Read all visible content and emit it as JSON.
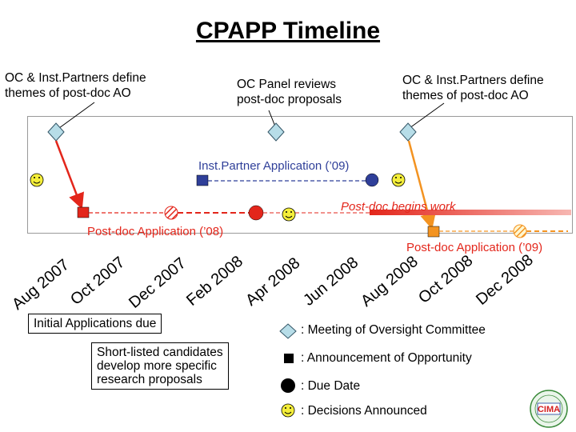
{
  "title": "CPAPP Timeline",
  "notes": {
    "left_line1": "OC & Inst.Partners define",
    "left_line2": "themes of post-doc AO",
    "mid_line1": "OC Panel reviews",
    "mid_line2": "post-doc proposals",
    "right_line1": "OC & Inst.Partners define",
    "right_line2": "themes of post-doc AO"
  },
  "timeline_labels": {
    "inst_partner_app": "Inst.Partner Application (’09)",
    "postdoc_begins": "Post-doc begins work",
    "postdoc_app_08": "Post-doc Application (’08)",
    "postdoc_app_09": "Post-doc Application (’09)"
  },
  "months": [
    "Aug 2007",
    "Oct 2007",
    "Dec 2007",
    "Feb 2008",
    "Apr 2008",
    "Jun 2008",
    "Aug 2008",
    "Oct 2008",
    "Dec 2008"
  ],
  "boxes": {
    "initial_apps": "Initial Applications due",
    "shortlisted_line1": "Short-listed candidates",
    "shortlisted_line2": "develop more specific",
    "shortlisted_line3": "research proposals"
  },
  "legend": {
    "meeting": ": Meeting of Oversight Committee",
    "announcement": ": Announcement of Opportunity",
    "due_date": ": Due Date",
    "decisions": ": Decisions Announced"
  },
  "logo_text": "CIMA",
  "colors": {
    "meeting": "#b7dde8",
    "announcement_red": "#e3261b",
    "announcement_blue": "#2f3f99",
    "announcement_orange": "#f39321",
    "due_red": "#e3261b",
    "due_blue": "#2f3f99",
    "smiley": "#f4ee3a",
    "arrow_red": "#e3261b",
    "arrow_orange": "#f39321"
  }
}
